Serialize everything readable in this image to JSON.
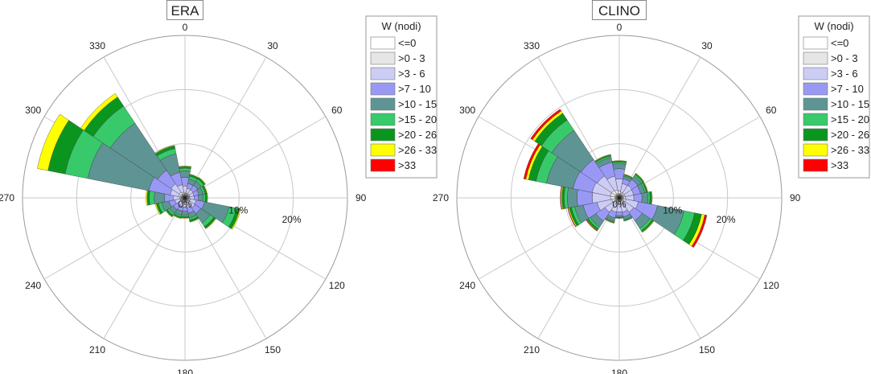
{
  "chart_data": [
    {
      "type": "polar-stacked-bar",
      "title": "ERA",
      "legend_title": "W (nodi)",
      "legend_position": "right",
      "direction_ticks": [
        "0",
        "30",
        "60",
        "90",
        "120",
        "150",
        "180",
        "210",
        "240",
        "270",
        "300",
        "330"
      ],
      "radial_ticks": [
        "0%",
        "10%",
        "20%"
      ],
      "radial_max": 30,
      "sector_width_deg": 22.5,
      "classes": [
        {
          "label": "<=0",
          "color": "#ffffff"
        },
        {
          "label": ">0 - 3",
          "color": "#e6e6e6"
        },
        {
          "label": ">3 - 6",
          "color": "#ccccf5"
        },
        {
          "label": ">7 - 10",
          "color": "#9999f5"
        },
        {
          "label": ">10 - 15",
          "color": "#5e9494"
        },
        {
          "label": ">15 - 20",
          "color": "#38c96b"
        },
        {
          "label": ">20 - 26",
          "color": "#0a961e"
        },
        {
          "label": ">26 - 33",
          "color": "#ffff00"
        },
        {
          "label": ">33",
          "color": "#ff0000"
        }
      ],
      "directions": [
        0,
        22.5,
        45,
        67.5,
        90,
        112.5,
        135,
        157.5,
        180,
        202.5,
        225,
        247.5,
        270,
        292.5,
        315,
        337.5
      ],
      "series": [
        {
          "name": "<=0",
          "values": [
            0.3,
            0.3,
            0.3,
            0.3,
            0.3,
            0.3,
            0.3,
            0.3,
            0.3,
            0.3,
            0.3,
            0.3,
            0.3,
            0.3,
            0.3,
            0.3
          ]
        },
        {
          "name": ">0 - 3",
          "values": [
            0.7,
            0.6,
            0.6,
            0.6,
            0.6,
            0.7,
            0.7,
            0.6,
            0.6,
            0.6,
            0.6,
            0.6,
            0.7,
            0.9,
            1.0,
            0.8
          ]
        },
        {
          "name": ">3 - 6",
          "values": [
            1.2,
            0.9,
            0.9,
            0.8,
            0.8,
            1.1,
            1.2,
            1.0,
            0.8,
            0.8,
            0.8,
            1.0,
            1.2,
            1.6,
            1.8,
            1.4
          ]
        },
        {
          "name": ">7 - 10",
          "values": [
            1.6,
            0.9,
            1.0,
            0.9,
            0.8,
            1.6,
            1.3,
            1.0,
            0.8,
            0.8,
            0.9,
            1.1,
            1.6,
            4.0,
            3.0,
            2.3
          ]
        },
        {
          "name": ">10 - 15",
          "values": [
            1.2,
            0.9,
            0.9,
            0.8,
            0.9,
            4.6,
            2.1,
            0.9,
            0.7,
            0.8,
            0.9,
            1.4,
            1.9,
            11.5,
            10.5,
            3.5
          ]
        },
        {
          "name": ">15 - 20",
          "values": [
            0.5,
            0.5,
            0.5,
            0.4,
            0.4,
            1.4,
            0.8,
            0.4,
            0.3,
            0.3,
            0.4,
            0.6,
            0.9,
            4.3,
            3.8,
            1.0
          ]
        },
        {
          "name": ">20 - 26",
          "values": [
            0.3,
            0.3,
            0.3,
            0.3,
            0.3,
            0.6,
            0.4,
            0.3,
            0.2,
            0.2,
            0.3,
            0.4,
            0.4,
            3.2,
            2.0,
            0.5
          ]
        },
        {
          "name": ">26 - 33",
          "values": [
            0.1,
            0.1,
            0.1,
            0.1,
            0.1,
            0.2,
            0.1,
            0.1,
            0.1,
            0.1,
            0.1,
            0.2,
            0.2,
            2.0,
            0.8,
            0.1
          ]
        },
        {
          "name": ">33",
          "values": [
            0,
            0,
            0,
            0,
            0,
            0,
            0,
            0,
            0,
            0,
            0,
            0,
            0,
            0,
            0,
            0
          ]
        }
      ]
    },
    {
      "type": "polar-stacked-bar",
      "title": "CLINO",
      "legend_title": "W (nodi)",
      "legend_position": "right",
      "direction_ticks": [
        "0",
        "30",
        "60",
        "90",
        "120",
        "150",
        "180",
        "210",
        "240",
        "270",
        "300",
        "330"
      ],
      "radial_ticks": [
        "0%",
        "10%",
        "20%"
      ],
      "radial_max": 30,
      "sector_width_deg": 22.5,
      "classes": [
        {
          "label": "<=0",
          "color": "#ffffff"
        },
        {
          "label": ">0 - 3",
          "color": "#e6e6e6"
        },
        {
          "label": ">3 - 6",
          "color": "#ccccf5"
        },
        {
          "label": ">7 - 10",
          "color": "#9999f5"
        },
        {
          "label": ">10 - 15",
          "color": "#5e9494"
        },
        {
          "label": ">15 - 20",
          "color": "#38c96b"
        },
        {
          "label": ">20 - 26",
          "color": "#0a961e"
        },
        {
          "label": ">26 - 33",
          "color": "#ffff00"
        },
        {
          "label": ">33",
          "color": "#ff0000"
        }
      ],
      "directions": [
        0,
        22.5,
        45,
        67.5,
        90,
        112.5,
        135,
        157.5,
        180,
        202.5,
        225,
        247.5,
        270,
        292.5,
        315,
        337.5
      ],
      "series": [
        {
          "name": "<=0",
          "values": [
            0.3,
            0.3,
            0.3,
            0.3,
            0.3,
            0.3,
            0.3,
            0.3,
            0.3,
            0.3,
            0.3,
            0.3,
            0.3,
            0.3,
            0.3,
            0.3
          ]
        },
        {
          "name": ">0 - 3",
          "values": [
            1.0,
            0.8,
            0.8,
            0.8,
            0.8,
            1.0,
            0.9,
            0.8,
            0.8,
            0.8,
            0.9,
            1.1,
            1.3,
            1.4,
            1.4,
            1.2
          ]
        },
        {
          "name": ">3 - 6",
          "values": [
            2.2,
            1.6,
            1.7,
            1.6,
            1.6,
            2.3,
            2.0,
            1.6,
            1.5,
            1.6,
            2.0,
            2.8,
            3.4,
            3.4,
            3.2,
            2.6
          ]
        },
        {
          "name": ">7 - 10",
          "values": [
            1.9,
            0.9,
            1.3,
            1.3,
            1.5,
            3.6,
            1.9,
            0.9,
            0.7,
            1.1,
            2.0,
            2.6,
            2.8,
            3.6,
            3.6,
            2.6
          ]
        },
        {
          "name": ">10 - 15",
          "values": [
            0.9,
            0.5,
            0.8,
            0.8,
            1.1,
            5.0,
            1.7,
            0.5,
            0.3,
            0.6,
            1.3,
            1.6,
            1.8,
            5.0,
            6.5,
            0.9
          ]
        },
        {
          "name": ">15 - 20",
          "values": [
            0.3,
            0.2,
            0.3,
            0.3,
            0.4,
            2.0,
            0.5,
            0.2,
            0.1,
            0.2,
            0.4,
            0.6,
            0.6,
            2.0,
            2.3,
            0.3
          ]
        },
        {
          "name": ">20 - 26",
          "values": [
            0.2,
            0.1,
            0.2,
            0.2,
            0.3,
            1.3,
            0.3,
            0.1,
            0.1,
            0.1,
            0.3,
            0.4,
            0.4,
            1.4,
            1.5,
            0.2
          ]
        },
        {
          "name": ">26 - 33",
          "values": [
            0.1,
            0.1,
            0.1,
            0.1,
            0.1,
            0.6,
            0.1,
            0.0,
            0.0,
            0.1,
            0.1,
            0.2,
            0.2,
            0.5,
            0.5,
            0.1
          ]
        },
        {
          "name": ">33",
          "values": [
            0.0,
            0.0,
            0.0,
            0.0,
            0.0,
            0.4,
            0.0,
            0.0,
            0.0,
            0.0,
            0.1,
            0.1,
            0.1,
            0.4,
            0.4,
            0.0
          ]
        }
      ]
    }
  ]
}
